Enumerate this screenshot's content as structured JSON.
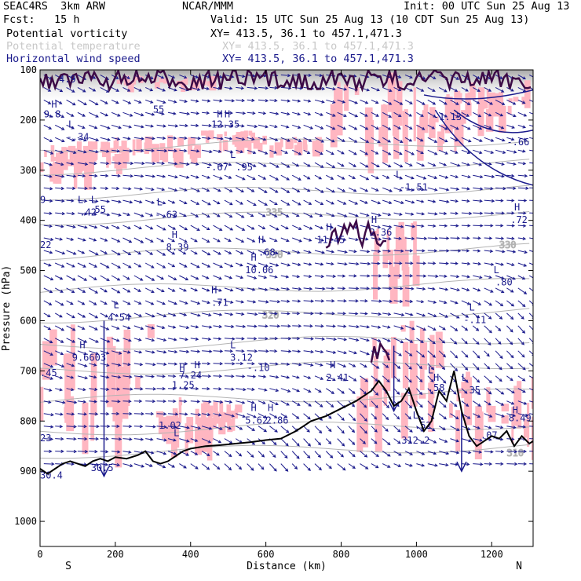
{
  "header": {
    "model": "SEAC4RS  3km ARW",
    "org": "NCAR/MMM",
    "init": "Init: 00 UTC Sun 25 Aug 13",
    "fcst": "Fcst:   15 h",
    "valid": "Valid: 15 UTC Sun 25 Aug 13 (10 CDT Sun 25 Aug 13)"
  },
  "fields": [
    {
      "name": "Potential vorticity",
      "xy": "XY= 413.5, 36.1 to 457.1,471.3",
      "color": "#000000"
    },
    {
      "name": "Potential temperature",
      "xy": "XY= 413.5, 36.1 to 457.1,471.3",
      "color": "#c8c8c8"
    },
    {
      "name": "Horizontal wind speed",
      "xy": "XY= 413.5, 36.1 to 457.1,471.3",
      "color": "#1a1a8c"
    }
  ],
  "chart_data": {
    "type": "cross-section",
    "xlabel": "Distance (km)",
    "ylabel": "Pressure (hPa)",
    "xlim": [
      0,
      1310
    ],
    "ylim": [
      1050,
      100
    ],
    "x_ticks": [
      0,
      200,
      400,
      600,
      800,
      1000,
      1200
    ],
    "y_ticks": [
      100,
      200,
      300,
      400,
      500,
      600,
      700,
      800,
      900,
      1000
    ],
    "end_labels": {
      "left": "S",
      "right": "N"
    },
    "colors": {
      "pv_shading": "#ffb6c1",
      "theta": "#b4b4b4",
      "theta_label": "#a0a0a0",
      "wind": "#1a1a8c",
      "pv_contour": "#3c0a46",
      "terrain": "#000000"
    },
    "terrain": [
      [
        0,
        895
      ],
      [
        20,
        905
      ],
      [
        40,
        895
      ],
      [
        60,
        885
      ],
      [
        80,
        880
      ],
      [
        100,
        885
      ],
      [
        120,
        890
      ],
      [
        140,
        880
      ],
      [
        160,
        875
      ],
      [
        180,
        880
      ],
      [
        200,
        872
      ],
      [
        230,
        875
      ],
      [
        260,
        868
      ],
      [
        280,
        860
      ],
      [
        300,
        880
      ],
      [
        320,
        885
      ],
      [
        340,
        880
      ],
      [
        360,
        870
      ],
      [
        380,
        860
      ],
      [
        400,
        855
      ],
      [
        440,
        850
      ],
      [
        480,
        848
      ],
      [
        520,
        845
      ],
      [
        560,
        842
      ],
      [
        600,
        838
      ],
      [
        640,
        835
      ],
      [
        680,
        820
      ],
      [
        700,
        810
      ],
      [
        720,
        800
      ],
      [
        760,
        790
      ],
      [
        800,
        775
      ],
      [
        840,
        760
      ],
      [
        880,
        740
      ],
      [
        900,
        720
      ],
      [
        920,
        740
      ],
      [
        940,
        770
      ],
      [
        960,
        760
      ],
      [
        980,
        735
      ],
      [
        1000,
        780
      ],
      [
        1020,
        820
      ],
      [
        1040,
        800
      ],
      [
        1060,
        740
      ],
      [
        1080,
        760
      ],
      [
        1100,
        700
      ],
      [
        1120,
        780
      ],
      [
        1140,
        830
      ],
      [
        1160,
        850
      ],
      [
        1180,
        840
      ],
      [
        1200,
        830
      ],
      [
        1220,
        835
      ],
      [
        1240,
        820
      ],
      [
        1260,
        850
      ],
      [
        1280,
        830
      ],
      [
        1300,
        845
      ],
      [
        1310,
        840
      ]
    ],
    "theta_isentropes": [
      {
        "label": "310",
        "p_left": 865,
        "p_right": 855,
        "lx": 1240,
        "lp": 870
      },
      {
        "label": "320",
        "p_left": 595,
        "p_right": 600,
        "lx": 590,
        "lp": 595
      },
      {
        "label": "330",
        "p_left": 470,
        "p_right": 460,
        "lx": 1220,
        "lp": 455
      },
      {
        "label": "330",
        "p_left": 480,
        "p_right": 470,
        "lx": 600,
        "lp": 475
      },
      {
        "label": "335",
        "p_left": 395,
        "p_right": 370,
        "lx": 600,
        "lp": 390
      }
    ],
    "extrema_labels": [
      {
        "t": "H",
        "x": 30,
        "p": 175
      },
      {
        "t": "9.8",
        "x": 10,
        "p": 195
      },
      {
        "t": "L",
        "x": 75,
        "p": 215
      },
      {
        "t": "-.34",
        "x": 70,
        "p": 240
      },
      {
        "t": "4.9",
        "x": 50,
        "p": 125
      },
      {
        "t": "55",
        "x": 300,
        "p": 185
      },
      {
        "t": "H",
        "x": 470,
        "p": 195
      },
      {
        "t": "H",
        "x": 490,
        "p": 195
      },
      {
        "t": "12.35",
        "x": 455,
        "p": 215
      },
      {
        "t": "L",
        "x": 505,
        "p": 275
      },
      {
        "t": "-.67",
        "x": 440,
        "p": 300
      },
      {
        "t": ".95",
        "x": 520,
        "p": 300
      },
      {
        "t": "L",
        "x": 945,
        "p": 315
      },
      {
        "t": "-1.51",
        "x": 955,
        "p": 340
      },
      {
        "t": "-1.13",
        "x": 1045,
        "p": 200
      },
      {
        "t": "-.66",
        "x": 1240,
        "p": 250
      },
      {
        "t": "9",
        "x": 0,
        "p": 365
      },
      {
        "t": "L",
        "x": 100,
        "p": 365
      },
      {
        "t": "L",
        "x": 135,
        "p": 365
      },
      {
        "t": ".42",
        "x": 105,
        "p": 390
      },
      {
        "t": "55",
        "x": 145,
        "p": 385
      },
      {
        "t": "L",
        "x": 310,
        "p": 370
      },
      {
        "t": "-.63",
        "x": 305,
        "p": 395
      },
      {
        "t": "H",
        "x": 1260,
        "p": 380
      },
      {
        "t": ".72",
        "x": 1250,
        "p": 405
      },
      {
        "t": "H",
        "x": 880,
        "p": 405
      },
      {
        "t": "2.36",
        "x": 875,
        "p": 430
      },
      {
        "t": "H",
        "x": 760,
        "p": 420
      },
      {
        "t": "11.45",
        "x": 735,
        "p": 445
      },
      {
        "t": "H",
        "x": 350,
        "p": 435
      },
      {
        "t": "8.39",
        "x": 335,
        "p": 460
      },
      {
        "t": "H",
        "x": 580,
        "p": 445
      },
      {
        "t": ".68",
        "x": 580,
        "p": 470
      },
      {
        "t": "22",
        "x": 0,
        "p": 455
      },
      {
        "t": "10.06",
        "x": 545,
        "p": 505
      },
      {
        "t": "H",
        "x": 560,
        "p": 480
      },
      {
        "t": "L",
        "x": 1205,
        "p": 505
      },
      {
        "t": ".80",
        "x": 1210,
        "p": 530
      },
      {
        "t": "H",
        "x": 455,
        "p": 545
      },
      {
        "t": ".71",
        "x": 455,
        "p": 570
      },
      {
        "t": "L",
        "x": 195,
        "p": 575
      },
      {
        "t": "4.54",
        "x": 180,
        "p": 600
      },
      {
        "t": "L",
        "x": 1140,
        "p": 580
      },
      {
        "t": "-.11",
        "x": 1125,
        "p": 605
      },
      {
        "t": "H",
        "x": 105,
        "p": 655
      },
      {
        "t": "9.6603",
        "x": 85,
        "p": 680
      },
      {
        "t": "L",
        "x": 505,
        "p": 655
      },
      {
        "t": "3.12",
        "x": 505,
        "p": 680
      },
      {
        "t": "-.10",
        "x": 550,
        "p": 700
      },
      {
        "t": "H",
        "x": 370,
        "p": 700
      },
      {
        "t": "H",
        "x": 410,
        "p": 695
      },
      {
        "t": "7.24",
        "x": 370,
        "p": 715
      },
      {
        "t": "1.25",
        "x": 350,
        "p": 735
      },
      {
        "t": "H",
        "x": 770,
        "p": 695
      },
      {
        "t": "2.41",
        "x": 760,
        "p": 720
      },
      {
        "t": "H",
        "x": 1045,
        "p": 720
      },
      {
        "t": "L",
        "x": 1030,
        "p": 705
      },
      {
        "t": ".58",
        "x": 1030,
        "p": 740
      },
      {
        "t": "L",
        "x": 1120,
        "p": 720
      },
      {
        "t": ".35",
        "x": 1125,
        "p": 745
      },
      {
        "t": ".45",
        "x": 0,
        "p": 710
      },
      {
        "t": "H",
        "x": 560,
        "p": 780
      },
      {
        "t": "H",
        "x": 605,
        "p": 780
      },
      {
        "t": "5.62",
        "x": 545,
        "p": 805
      },
      {
        "t": "2.86",
        "x": 600,
        "p": 805
      },
      {
        "t": "H",
        "x": 1255,
        "p": 785
      },
      {
        "t": "8.49",
        "x": 1245,
        "p": 800
      },
      {
        "t": "L",
        "x": 990,
        "p": 795
      },
      {
        "t": ".52",
        "x": 995,
        "p": 815
      },
      {
        "t": "1.02",
        "x": 315,
        "p": 815
      },
      {
        "t": "L",
        "x": 355,
        "p": 830
      },
      {
        "t": ".07",
        "x": 1170,
        "p": 835
      },
      {
        "t": "23",
        "x": 0,
        "p": 840
      },
      {
        "t": "312.2",
        "x": 960,
        "p": 845
      },
      {
        "t": "30.5",
        "x": 135,
        "p": 900
      },
      {
        "t": "30.4",
        "x": 0,
        "p": 915
      }
    ]
  }
}
